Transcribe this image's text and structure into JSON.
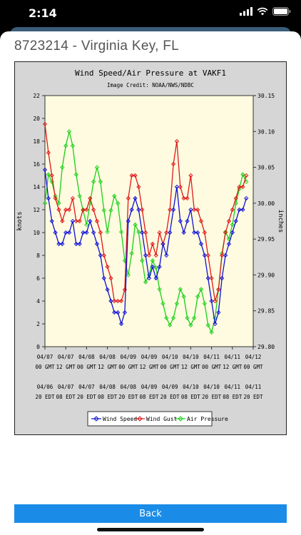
{
  "status": {
    "time": "2:14"
  },
  "header": {
    "station": "8723214 - Virginia Key, FL"
  },
  "back_button": {
    "label": "Back"
  },
  "colors": {
    "wind_speed": "#1010d8",
    "wind_gust": "#e01818",
    "air_pressure": "#18d018",
    "plot_bg": "#fffbe0",
    "frame_bg": "#d6d6d6",
    "button": "#1a8ce8"
  },
  "chart_data": {
    "type": "line",
    "title": "Wind Speed/Air Pressure at VAKF1",
    "subtitle": "Image Credit: NOAA/NWS/NDBC",
    "ylabel": "knots",
    "y2label": "inches",
    "ylim": [
      0,
      22
    ],
    "y2lim": [
      29.8,
      30.15
    ],
    "yticks": [
      "0",
      "2",
      "4",
      "6",
      "8",
      "10",
      "12",
      "14",
      "16",
      "18",
      "20",
      "22"
    ],
    "y2ticks": [
      "29.80",
      "29.85",
      "29.90",
      "29.95",
      "30.00",
      "30.05",
      "30.10",
      "30.15"
    ],
    "xlim": [
      0,
      120
    ],
    "x_ticks": [
      {
        "x": 0,
        "gmt1": "04/07",
        "gmt2": "00 GMT",
        "edt1": "04/06",
        "edt2": "20 EDT"
      },
      {
        "x": 12,
        "gmt1": "04/07",
        "gmt2": "12 GMT",
        "edt1": "04/07",
        "edt2": "08 EDT"
      },
      {
        "x": 24,
        "gmt1": "04/08",
        "gmt2": "00 GMT",
        "edt1": "04/07",
        "edt2": "20 EDT"
      },
      {
        "x": 36,
        "gmt1": "04/08",
        "gmt2": "12 GMT",
        "edt1": "04/08",
        "edt2": "08 EDT"
      },
      {
        "x": 48,
        "gmt1": "04/09",
        "gmt2": "00 GMT",
        "edt1": "04/08",
        "edt2": "20 EDT"
      },
      {
        "x": 60,
        "gmt1": "04/09",
        "gmt2": "12 GMT",
        "edt1": "04/09",
        "edt2": "08 EDT"
      },
      {
        "x": 72,
        "gmt1": "04/10",
        "gmt2": "00 GMT",
        "edt1": "04/09",
        "edt2": "20 EDT"
      },
      {
        "x": 84,
        "gmt1": "04/10",
        "gmt2": "12 GMT",
        "edt1": "04/10",
        "edt2": "08 EDT"
      },
      {
        "x": 96,
        "gmt1": "04/11",
        "gmt2": "00 GMT",
        "edt1": "04/10",
        "edt2": "20 EDT"
      },
      {
        "x": 108,
        "gmt1": "04/11",
        "gmt2": "12 GMT",
        "edt1": "04/11",
        "edt2": "08 EDT"
      },
      {
        "x": 120,
        "gmt1": "04/12",
        "gmt2": "00 GMT",
        "edt1": "04/11",
        "edt2": "20 EDT"
      }
    ],
    "legend": {
      "placement": "bottom-center"
    },
    "grid": false,
    "series": [
      {
        "name": "Wind Speed",
        "axis": "left",
        "x": [
          0,
          2,
          4,
          6,
          8,
          10,
          12,
          14,
          16,
          18,
          20,
          22,
          24,
          26,
          28,
          30,
          32,
          34,
          36,
          38,
          40,
          42,
          44,
          46,
          48,
          50,
          52,
          54,
          56,
          58,
          60,
          62,
          64,
          66,
          68,
          70,
          72,
          74,
          76,
          78,
          80,
          82,
          84,
          86,
          88,
          90,
          92,
          94,
          96,
          98,
          100,
          102,
          104,
          106,
          108,
          110,
          112,
          114,
          116
        ],
        "values": [
          15.5,
          13,
          11,
          10,
          9,
          9,
          10,
          10,
          11,
          9,
          9,
          10,
          10,
          11,
          10,
          9,
          8,
          6,
          5,
          4,
          3,
          3,
          2,
          3,
          11,
          12,
          13,
          12,
          10,
          8,
          6,
          7,
          6,
          7,
          9,
          8,
          10,
          12,
          14,
          11,
          10,
          11,
          12,
          10,
          10,
          9,
          8,
          6,
          4,
          2,
          3,
          6,
          8,
          9,
          10,
          11,
          12,
          12,
          13
        ]
      },
      {
        "name": "Wind Gust",
        "axis": "left",
        "x": [
          0,
          2,
          4,
          6,
          8,
          10,
          12,
          14,
          16,
          18,
          20,
          22,
          24,
          26,
          28,
          30,
          32,
          34,
          36,
          38,
          40,
          42,
          44,
          46,
          48,
          50,
          52,
          54,
          56,
          58,
          60,
          62,
          64,
          66,
          68,
          70,
          72,
          74,
          76,
          78,
          80,
          82,
          84,
          86,
          88,
          90,
          92,
          94,
          96,
          98,
          100,
          102,
          104,
          106,
          108,
          110,
          112,
          114,
          116
        ],
        "values": [
          19.5,
          17,
          15,
          13,
          12,
          11,
          12,
          12,
          13,
          11,
          11,
          12,
          12,
          13,
          12,
          11,
          10,
          8,
          7,
          6,
          4,
          4,
          4,
          5,
          13,
          15,
          15,
          14,
          12,
          10,
          8,
          9,
          8,
          10,
          9,
          10,
          12,
          16,
          18,
          14,
          13,
          13,
          15,
          12,
          12,
          11,
          10,
          8,
          6,
          4,
          5,
          8,
          10,
          11,
          12,
          13,
          14,
          14,
          15
        ]
      },
      {
        "name": "Air Pressure",
        "axis": "right",
        "x": [
          0,
          2,
          4,
          6,
          8,
          10,
          12,
          14,
          16,
          18,
          20,
          22,
          24,
          26,
          28,
          30,
          32,
          34,
          36,
          38,
          40,
          42,
          44,
          46,
          48,
          50,
          52,
          54,
          56,
          58,
          60,
          62,
          64,
          66,
          68,
          70,
          72,
          74,
          76,
          78,
          80,
          82,
          84,
          86,
          88,
          90,
          92,
          94,
          96,
          98,
          100,
          102,
          104,
          106,
          108,
          110,
          112,
          114,
          116
        ],
        "values": [
          30.0,
          30.04,
          30.03,
          30.01,
          30.0,
          30.05,
          30.08,
          30.1,
          30.08,
          30.04,
          30.01,
          29.99,
          29.97,
          30.0,
          30.03,
          30.05,
          30.03,
          29.99,
          29.96,
          29.99,
          30.01,
          30.0,
          29.96,
          29.92,
          29.9,
          29.93,
          29.97,
          29.96,
          29.92,
          29.89,
          29.9,
          29.92,
          29.91,
          29.88,
          29.86,
          29.84,
          29.83,
          29.84,
          29.86,
          29.88,
          29.87,
          29.84,
          29.83,
          29.84,
          29.87,
          29.88,
          29.86,
          29.83,
          29.82,
          29.84,
          29.88,
          29.93,
          29.96,
          29.95,
          29.97,
          30.0,
          30.02,
          30.04,
          30.03
        ]
      }
    ]
  }
}
